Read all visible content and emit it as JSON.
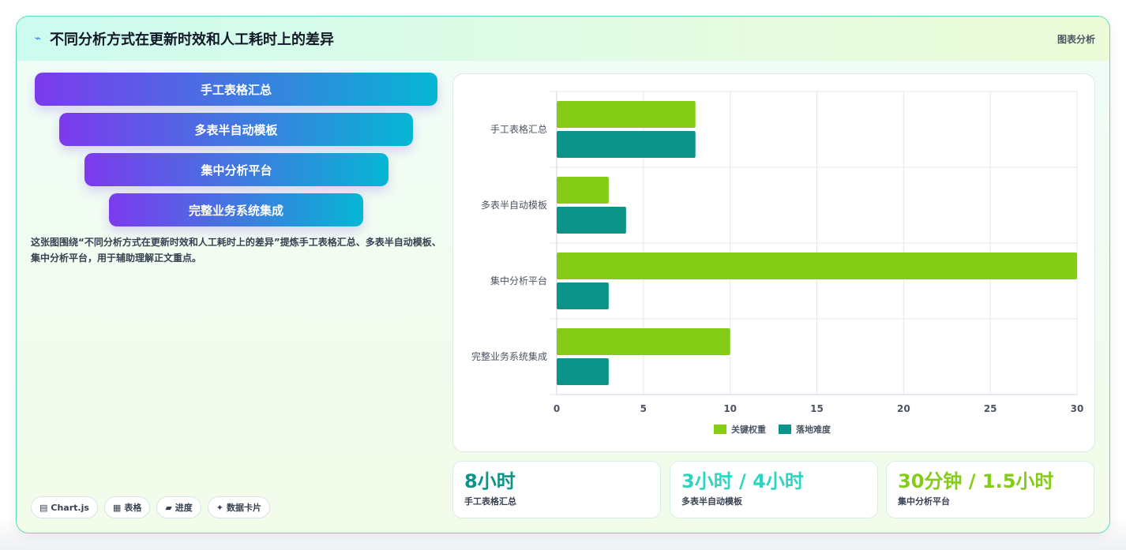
{
  "header": {
    "icon": "chart-line-icon",
    "title": "不同分析方式在更新时效和人工耗时上的差异",
    "tag": "图表分析"
  },
  "funnel": {
    "steps": [
      "手工表格汇总",
      "多表半自动模板",
      "集中分析平台",
      "完整业务系统集成"
    ]
  },
  "description": "这张图围绕“不同分析方式在更新时效和人工耗时上的差异”提炼手工表格汇总、多表半自动模板、集中分析平台，用于辅助理解正文重点。",
  "chips": [
    {
      "icon": "chart-icon",
      "glyph": "▤",
      "label": "Chart.js"
    },
    {
      "icon": "table-icon",
      "glyph": "▦",
      "label": "表格"
    },
    {
      "icon": "progress-icon",
      "glyph": "▰",
      "label": "进度"
    },
    {
      "icon": "sparkle-icon",
      "glyph": "✦",
      "label": "数据卡片"
    }
  ],
  "colors": {
    "series_a": "#84cc16",
    "series_b": "#0d9488",
    "stat_1": "#0d9488",
    "stat_2": "#2dd4bf",
    "stat_3": "#84cc16"
  },
  "chart_data": {
    "type": "bar",
    "orientation": "horizontal",
    "categories": [
      "手工表格汇总",
      "多表半自动模板",
      "集中分析平台",
      "完整业务系统集成"
    ],
    "series": [
      {
        "name": "关键权重",
        "values": [
          8,
          3,
          30,
          10
        ]
      },
      {
        "name": "落地难度",
        "values": [
          8,
          4,
          3,
          3
        ]
      }
    ],
    "xlim": [
      0,
      30
    ],
    "xticks": [
      0,
      5,
      10,
      15,
      20,
      25,
      30
    ],
    "grid": true,
    "legend": "bottom"
  },
  "stats": [
    {
      "value": "8小时",
      "label": "手工表格汇总"
    },
    {
      "value": "3小时 / 4小时",
      "label": "多表半自动模板"
    },
    {
      "value": "30分钟 / 1.5小时",
      "label": "集中分析平台"
    }
  ]
}
